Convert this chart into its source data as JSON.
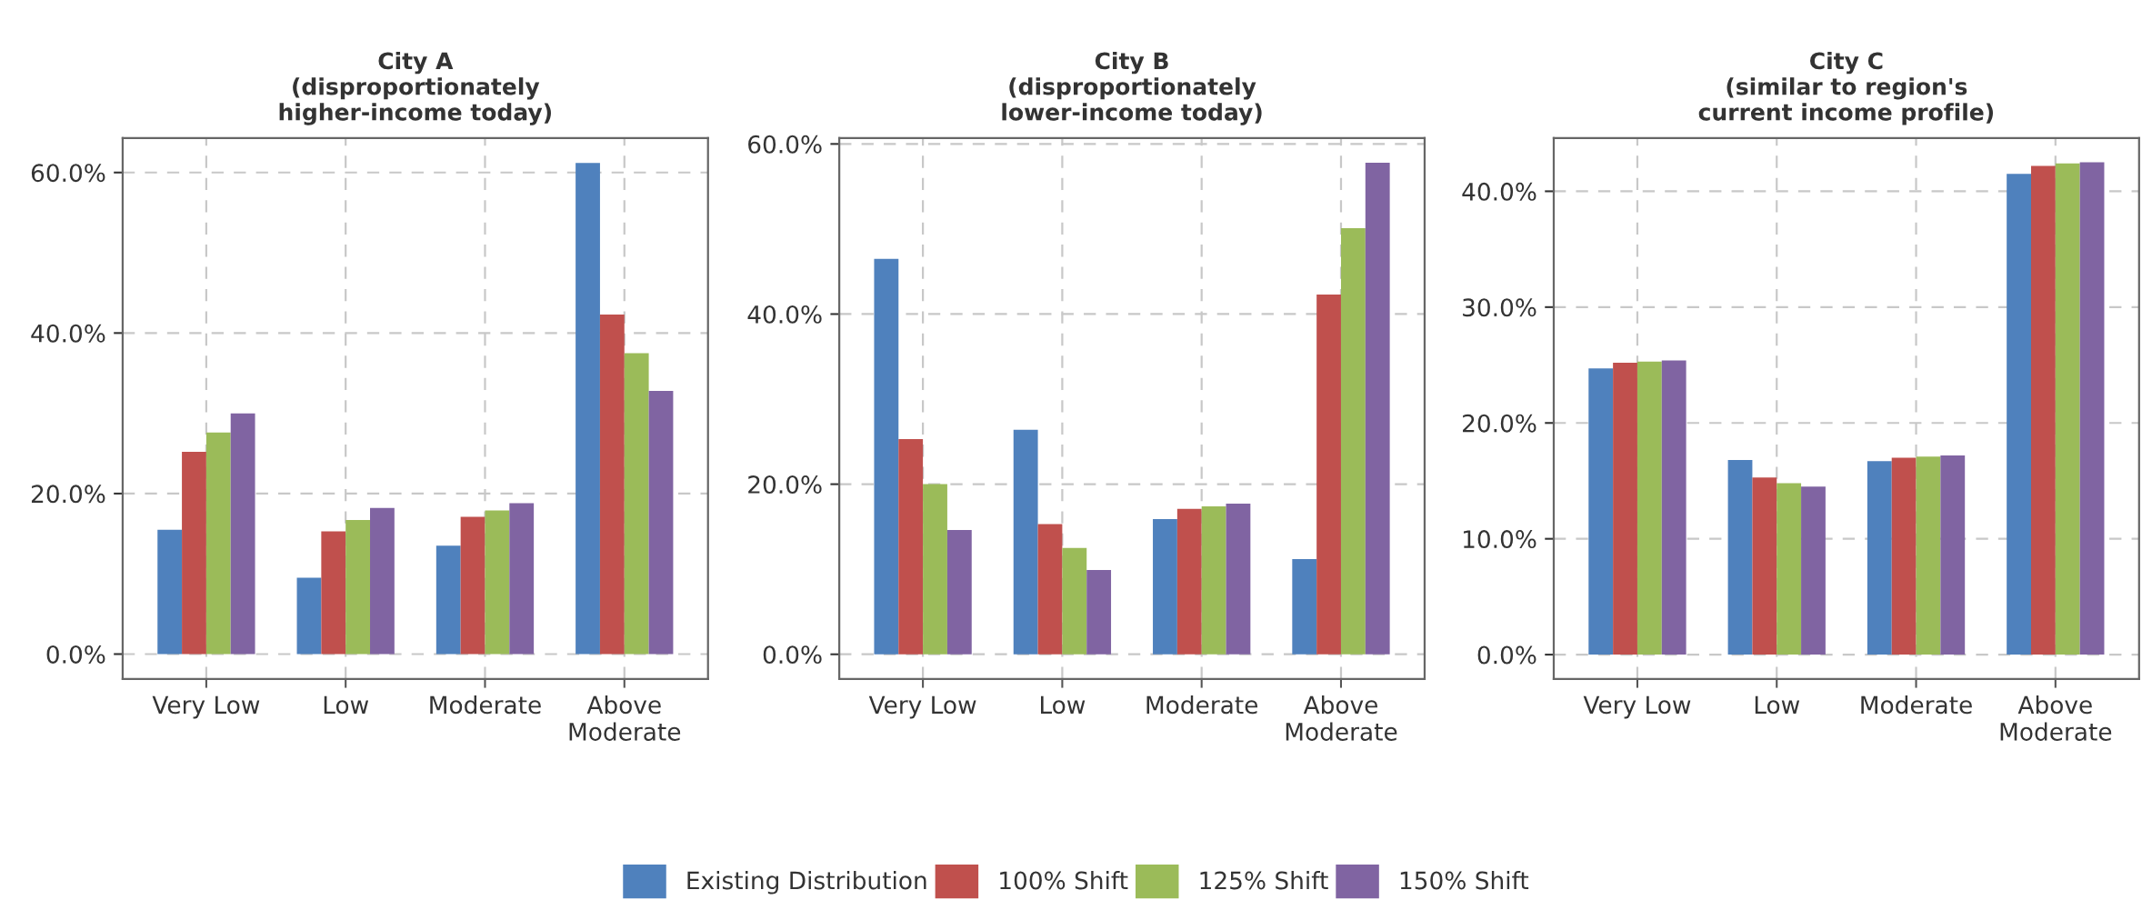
{
  "chart_data": [
    {
      "type": "bar",
      "title": "City A\n(disproportionately\nhigher-income today)",
      "categories": [
        "Very Low",
        "Low",
        "Moderate",
        "Above\nModerate"
      ],
      "series": [
        {
          "name": "Existing Distribution",
          "color": "#4f81bd",
          "values": [
            15.5,
            9.5,
            13.5,
            61.2
          ]
        },
        {
          "name": "100% Shift",
          "color": "#c0504d",
          "values": [
            25.2,
            15.3,
            17.1,
            42.3
          ]
        },
        {
          "name": "125% Shift",
          "color": "#9bbb59",
          "values": [
            27.6,
            16.7,
            17.9,
            37.5
          ]
        },
        {
          "name": "150% Shift",
          "color": "#8064a2",
          "values": [
            30.0,
            18.2,
            18.8,
            32.8
          ]
        }
      ],
      "ylim": [
        -3.1,
        64.3
      ],
      "yticks": [
        {
          "value": 0,
          "label": "0.0%"
        },
        {
          "value": 20,
          "label": "20.0%"
        },
        {
          "value": 40,
          "label": "40.0%"
        },
        {
          "value": 60,
          "label": "60.0%"
        }
      ],
      "grid": true,
      "legend": "bottom"
    },
    {
      "type": "bar",
      "title": "City B\n(disproportionately\nlower-income today)",
      "categories": [
        "Very Low",
        "Low",
        "Moderate",
        "Above\nModerate"
      ],
      "series": [
        {
          "name": "Existing Distribution",
          "color": "#4f81bd",
          "values": [
            46.5,
            26.4,
            15.9,
            11.2
          ]
        },
        {
          "name": "100% Shift",
          "color": "#c0504d",
          "values": [
            25.3,
            15.3,
            17.1,
            42.3
          ]
        },
        {
          "name": "125% Shift",
          "color": "#9bbb59",
          "values": [
            20.0,
            12.5,
            17.4,
            50.1
          ]
        },
        {
          "name": "150% Shift",
          "color": "#8064a2",
          "values": [
            14.6,
            9.9,
            17.7,
            57.8
          ]
        }
      ],
      "ylim": [
        -2.9,
        60.7
      ],
      "yticks": [
        {
          "value": 0,
          "label": "0.0%"
        },
        {
          "value": 20,
          "label": "20.0%"
        },
        {
          "value": 40,
          "label": "40.0%"
        },
        {
          "value": 60,
          "label": "60.0%"
        }
      ],
      "grid": true,
      "legend": "bottom"
    },
    {
      "type": "bar",
      "title": "City C\n(similar to region's\ncurrent income profile)",
      "categories": [
        "Very Low",
        "Low",
        "Moderate",
        "Above\nModerate"
      ],
      "series": [
        {
          "name": "Existing Distribution",
          "color": "#4f81bd",
          "values": [
            24.7,
            16.8,
            16.7,
            41.5
          ]
        },
        {
          "name": "100% Shift",
          "color": "#c0504d",
          "values": [
            25.2,
            15.3,
            17.0,
            42.2
          ]
        },
        {
          "name": "125% Shift",
          "color": "#9bbb59",
          "values": [
            25.3,
            14.8,
            17.1,
            42.4
          ]
        },
        {
          "name": "150% Shift",
          "color": "#8064a2",
          "values": [
            25.4,
            14.5,
            17.2,
            42.5
          ]
        }
      ],
      "ylim": [
        -2.1,
        44.6
      ],
      "yticks": [
        {
          "value": 0,
          "label": "0.0%"
        },
        {
          "value": 10,
          "label": "10.0%"
        },
        {
          "value": 20,
          "label": "20.0%"
        },
        {
          "value": 30,
          "label": "30.0%"
        },
        {
          "value": 40,
          "label": "40.0%"
        }
      ],
      "grid": true,
      "legend": "bottom"
    }
  ]
}
